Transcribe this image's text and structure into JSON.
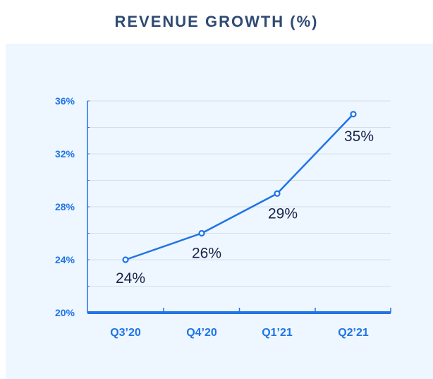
{
  "chart_data": {
    "type": "line",
    "title": "REVENUE GROWTH (%)",
    "categories": [
      "Q3’20",
      "Q4’20",
      "Q1’21",
      "Q2’21"
    ],
    "values": [
      24,
      26,
      29,
      35
    ],
    "data_labels": [
      "24%",
      "26%",
      "29%",
      "35%"
    ],
    "ylim": [
      20,
      36
    ],
    "yticks": [
      20,
      24,
      28,
      32,
      36
    ],
    "ytick_labels": [
      "20%",
      "24%",
      "28%",
      "32%",
      "36%"
    ],
    "xlabel": "",
    "ylabel": "",
    "grid": true,
    "legend": "none",
    "colors": {
      "line": "#1f74e6",
      "axis": "#1f74e6",
      "grid": "#d6dde6",
      "label": "#17234a",
      "title": "#2f4a73",
      "background": "#eef6ff"
    }
  }
}
